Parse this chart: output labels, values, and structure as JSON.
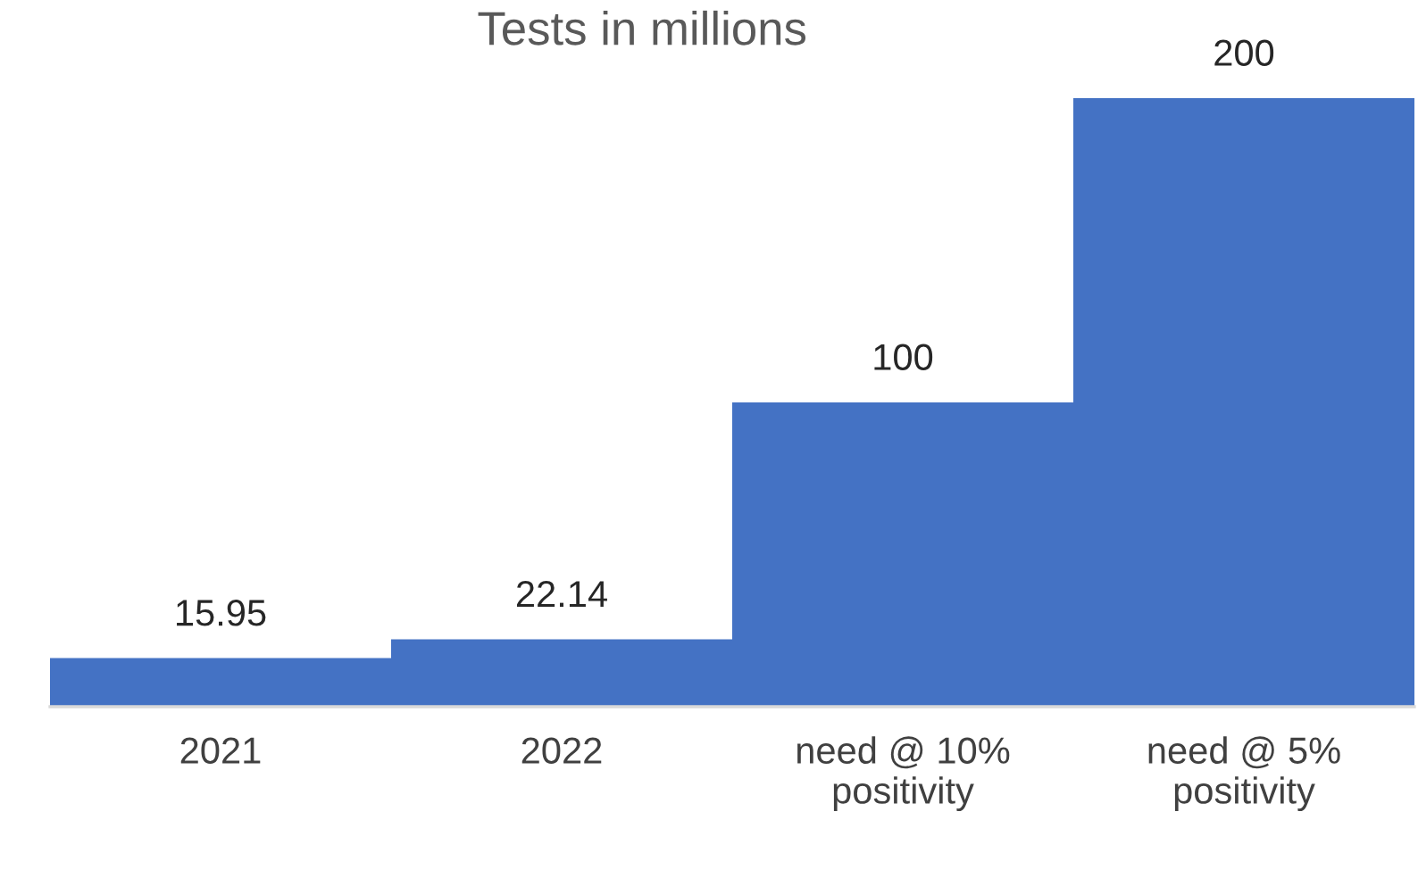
{
  "chart_data": {
    "type": "bar",
    "title": "Tests in millions",
    "categories": [
      "2021",
      "2022",
      "need @ 10% positivity",
      "need @ 5% positivity"
    ],
    "values": [
      15.95,
      22.14,
      100,
      200
    ],
    "color": "#4472c4",
    "data_labels": true,
    "grid": false,
    "legend": false
  }
}
